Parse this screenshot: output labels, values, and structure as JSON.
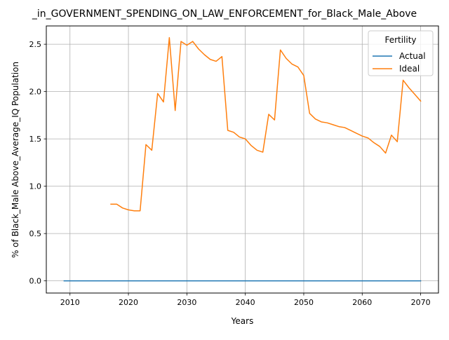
{
  "chart_data": {
    "type": "line",
    "title": "_in_GOVERNMENT_SPENDING_ON_LAW_ENFORCEMENT_for_Black_Male_Above",
    "xlabel": "Years",
    "ylabel": "% of Black_Male Above_Average_IQ Population",
    "xlim": [
      2005.95,
      2073.05
    ],
    "ylim": [
      -0.1285,
      2.6935
    ],
    "x_ticks": [
      2010,
      2020,
      2030,
      2040,
      2050,
      2060,
      2070
    ],
    "x_tick_labels": [
      "2010",
      "2020",
      "2030",
      "2040",
      "2050",
      "2060",
      "2070"
    ],
    "y_ticks": [
      0.0,
      0.5,
      1.0,
      1.5,
      2.0,
      2.5
    ],
    "y_tick_labels": [
      "0.0",
      "0.5",
      "1.0",
      "1.5",
      "2.0",
      "2.5"
    ],
    "grid": true,
    "legend": {
      "title": "Fertility",
      "placement": "top-right"
    },
    "series": [
      {
        "name": "Actual",
        "color": "#1f77b4",
        "x": [
          2009,
          2070
        ],
        "y": [
          0.0,
          0.0
        ]
      },
      {
        "name": "Ideal",
        "color": "#ff7f0e",
        "x": [
          2017,
          2018,
          2019,
          2020,
          2021,
          2022,
          2023,
          2024,
          2025,
          2026,
          2027,
          2028,
          2029,
          2030,
          2031,
          2032,
          2033,
          2034,
          2035,
          2036,
          2037,
          2038,
          2039,
          2040,
          2041,
          2042,
          2043,
          2044,
          2045,
          2046,
          2047,
          2048,
          2049,
          2050,
          2051,
          2052,
          2053,
          2054,
          2055,
          2056,
          2057,
          2058,
          2059,
          2060,
          2061,
          2062,
          2063,
          2064,
          2065,
          2066,
          2067,
          2068,
          2069,
          2070
        ],
        "y": [
          0.81,
          0.81,
          0.77,
          0.75,
          0.74,
          0.74,
          1.44,
          1.38,
          1.98,
          1.89,
          2.57,
          1.8,
          2.53,
          2.49,
          2.53,
          2.45,
          2.39,
          2.34,
          2.32,
          2.37,
          1.59,
          1.57,
          1.52,
          1.5,
          1.43,
          1.38,
          1.36,
          1.76,
          1.7,
          2.44,
          2.35,
          2.29,
          2.26,
          2.17,
          1.77,
          1.71,
          1.68,
          1.67,
          1.65,
          1.63,
          1.62,
          1.59,
          1.56,
          1.53,
          1.51,
          1.46,
          1.42,
          1.35,
          1.54,
          1.47,
          2.12,
          2.04,
          1.97,
          1.9
        ]
      }
    ]
  }
}
